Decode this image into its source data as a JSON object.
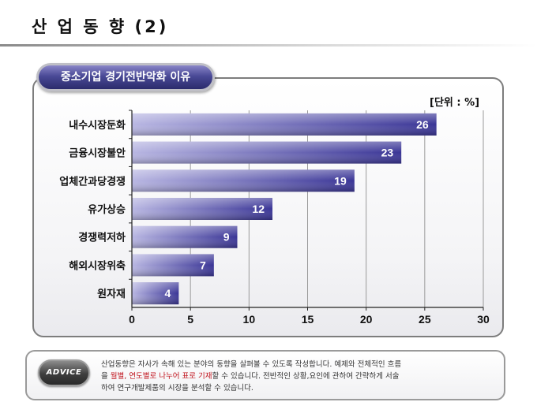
{
  "slide": {
    "title": "산 업 동 향 (2)",
    "subtitle_pill": "중소기업 경기전반악화 이유",
    "unit_label": "[단위 : %]"
  },
  "chart_data": {
    "type": "bar",
    "orientation": "horizontal",
    "categories": [
      "내수시장둔화",
      "금융시장불안",
      "업체간과당경쟁",
      "유가상승",
      "경쟁력저하",
      "해외시장위축",
      "원자재"
    ],
    "values": [
      26,
      23,
      19,
      12,
      9,
      7,
      4
    ],
    "data_labels": [
      "26",
      "23",
      "19",
      "12",
      "9",
      "7",
      "4"
    ],
    "xlim": [
      0,
      30
    ],
    "x_ticks": [
      "0",
      "5",
      "10",
      "15",
      "20",
      "25",
      "30"
    ],
    "grid": true,
    "bar_color": "#3a3596",
    "bar_color_light": "#b8b6e2"
  },
  "advice": {
    "badge": "ADVICE",
    "line1": "산업동향은 자사가 속해 있는 분야의 동향을 살펴볼 수 있도록 작성합니다. 예제와 전체적인 흐름",
    "line2_pre": "을 ",
    "line2_highlight": "월별, 연도별로 나누어 표로 기재",
    "line2_post": "할 수  있습니다. 전반적인 상황,요인에 관하여 간략하게 서술",
    "line3": "하여 연구개발제품의 시장을 분석할 수 있습니다."
  }
}
